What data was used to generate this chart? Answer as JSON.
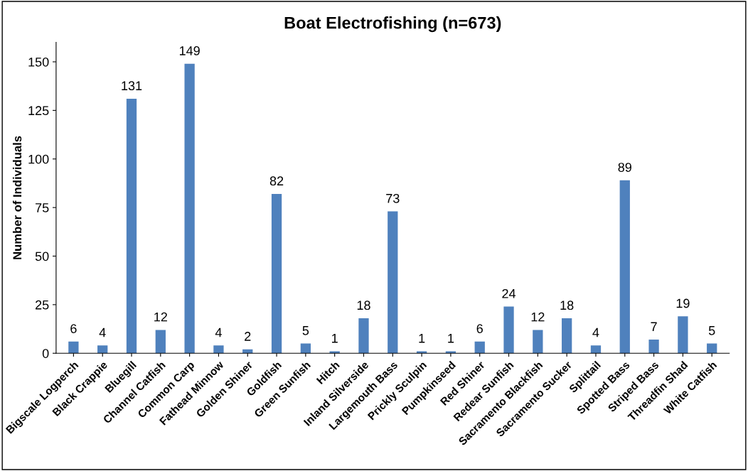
{
  "chart_data": {
    "type": "bar",
    "title": "Boat Electrofishing (n=673)",
    "ylabel": "Number of Individuals",
    "categories": [
      "Bigscale Logperch",
      "Black Crappie",
      "Bluegill",
      "Channel Catfish",
      "Common Carp",
      "Fathead Minnow",
      "Golden Shiner",
      "Goldfish",
      "Green Sunfish",
      "Hitch",
      "Inland Silverside",
      "Largemouth Bass",
      "Prickly Sculpin",
      "Pumpkinseed",
      "Red Shiner",
      "Redear Sunfish",
      "Sacramento Blackfish",
      "Sacramento Sucker",
      "Splittail",
      "Spotted Bass",
      "Striped Bass",
      "Threadfin Shad",
      "White Catfish"
    ],
    "values": [
      6,
      4,
      131,
      12,
      149,
      4,
      2,
      82,
      5,
      1,
      18,
      73,
      1,
      1,
      6,
      24,
      12,
      18,
      4,
      89,
      7,
      19,
      5
    ],
    "color": "#4f81bd",
    "ylim": [
      0,
      160
    ],
    "yticks": [
      0,
      25,
      50,
      75,
      100,
      125,
      150
    ],
    "grid": false,
    "legend": false,
    "data_labels": true
  }
}
